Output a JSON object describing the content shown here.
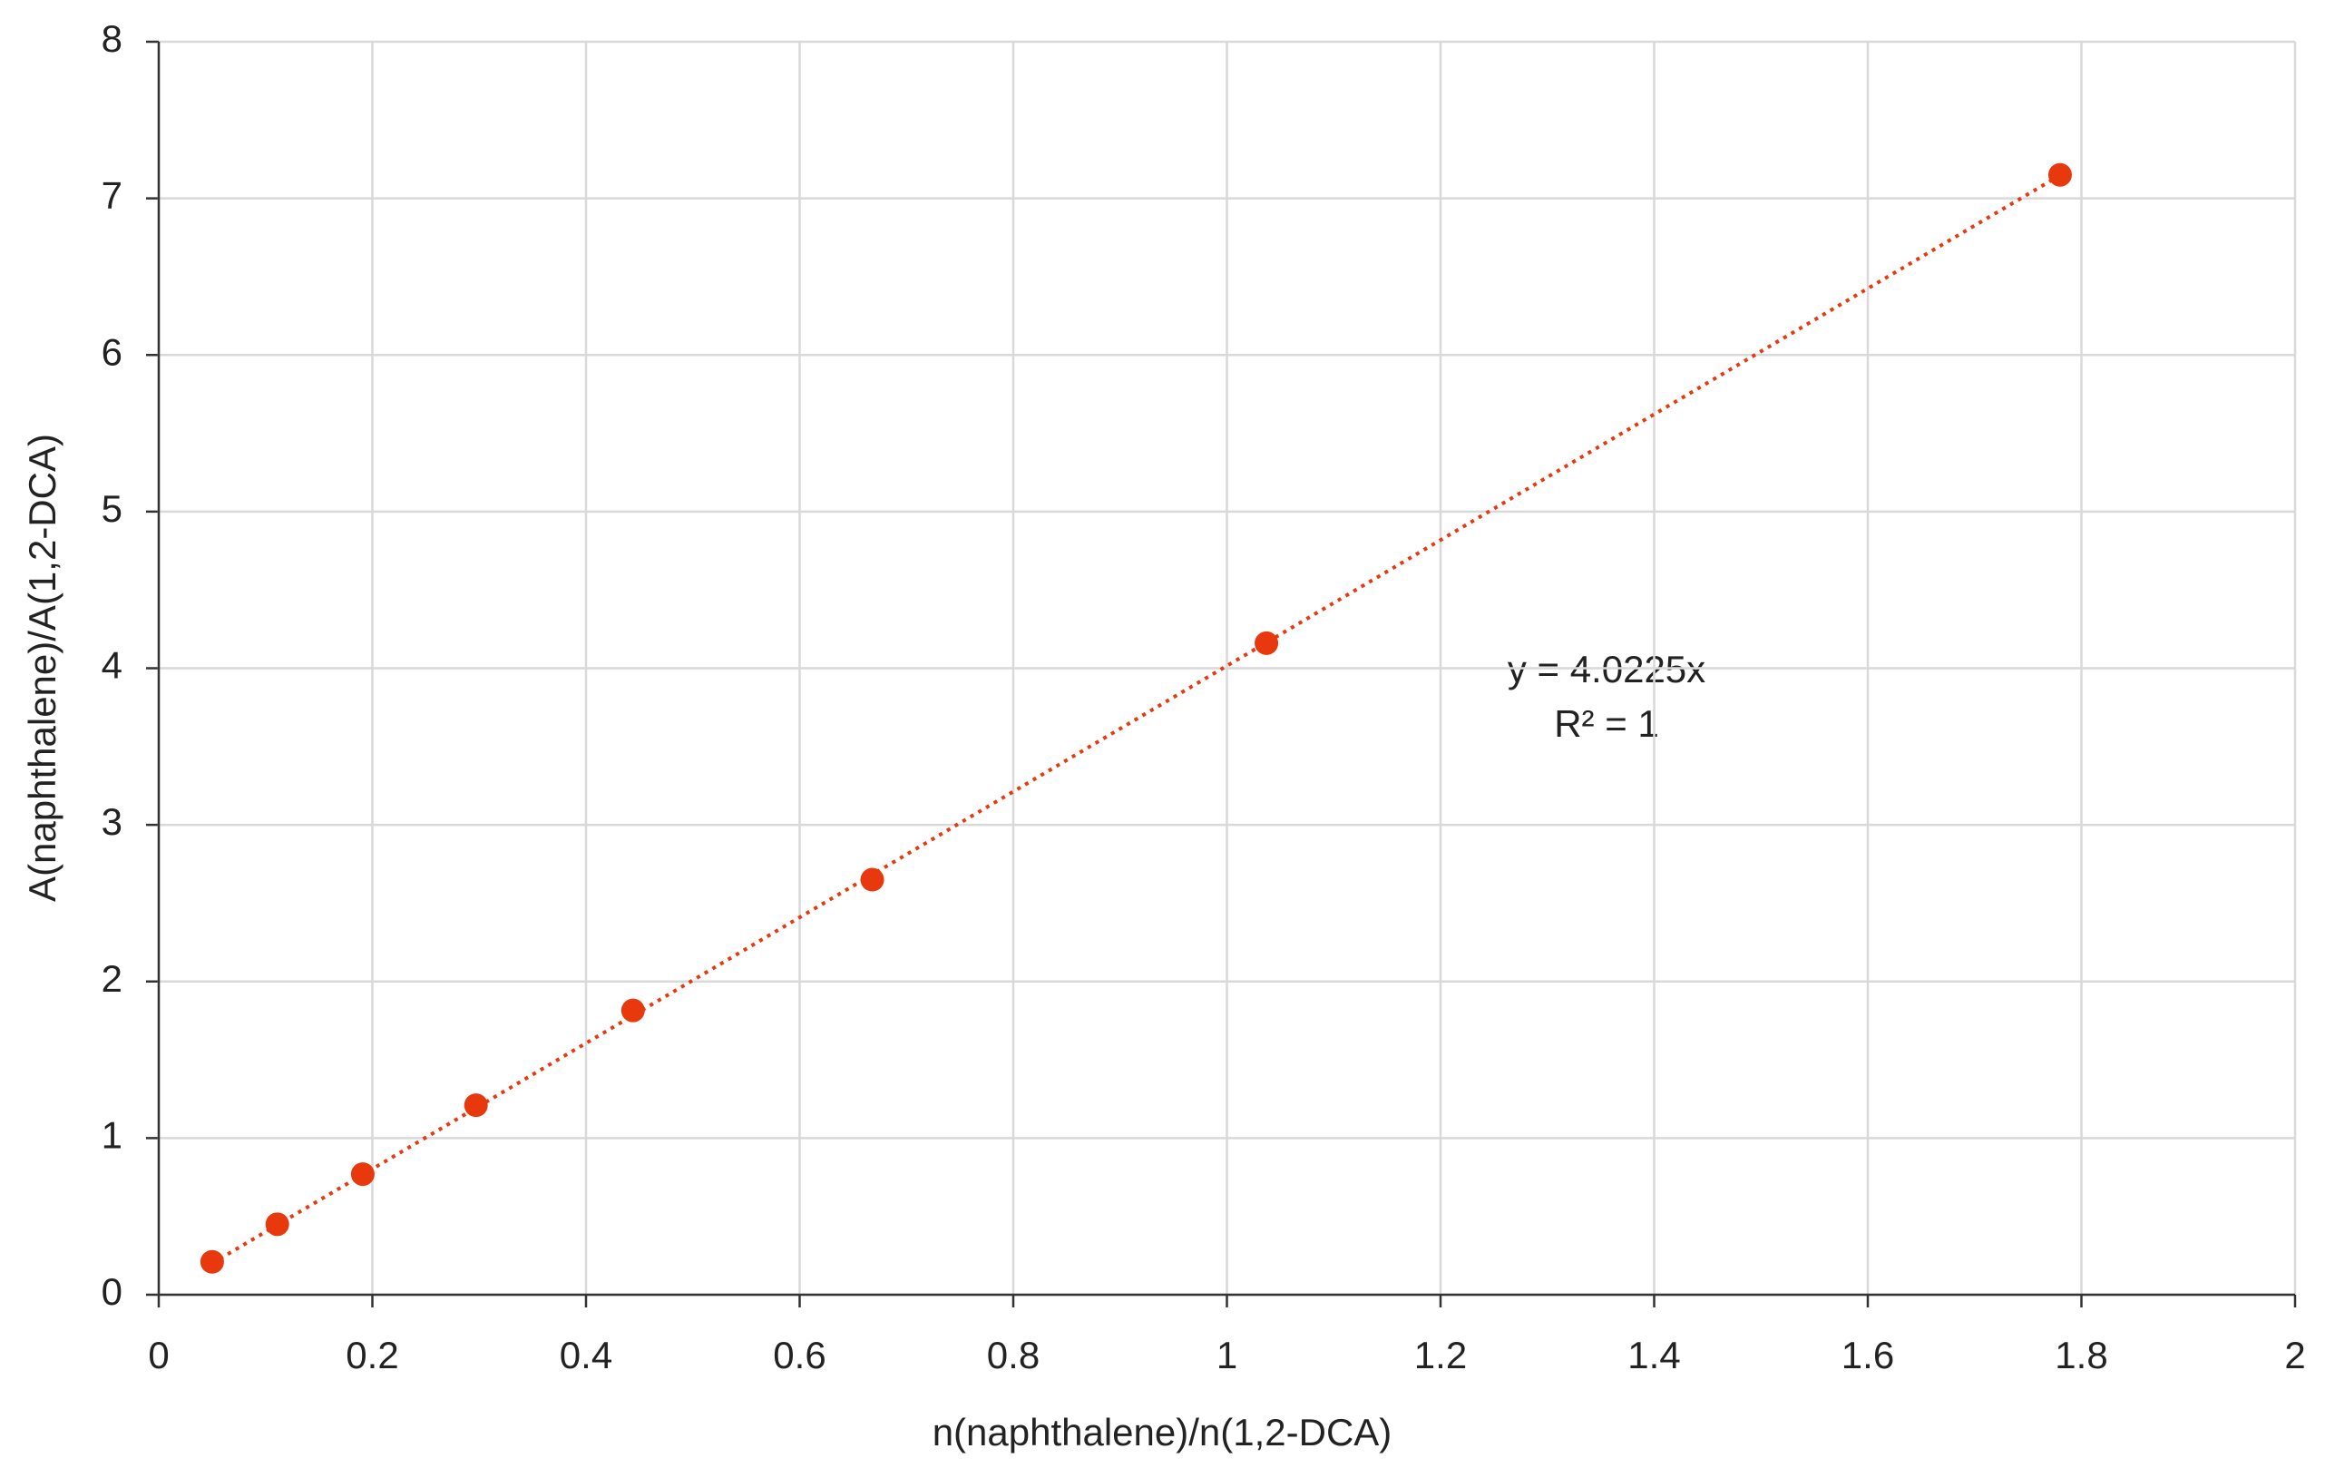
{
  "chart_data": {
    "type": "scatter",
    "x_label": "n(naphthalene)/n(1,2-DCA)",
    "y_label": "A(naphthalene)/A(1,2-DCA)",
    "annotations": [
      "y = 4.0225x",
      "R² = 1"
    ],
    "series": [
      {
        "color": "#e8380d",
        "x": [
          0.05,
          0.111,
          0.191,
          0.297,
          0.444,
          0.668,
          1.037,
          1.78
        ],
        "values": [
          0.21,
          0.45,
          0.77,
          1.21,
          1.815,
          2.65,
          4.16,
          7.15
        ]
      }
    ],
    "trendline": true,
    "xlim": [
      0,
      2
    ],
    "xticks": [
      0,
      0.2,
      0.4,
      0.6,
      0.8,
      1,
      1.2,
      1.4,
      1.6,
      1.8,
      2
    ],
    "ylim": [
      0,
      8
    ],
    "yticks": [
      0,
      1,
      2,
      3,
      4,
      5,
      6,
      7,
      8
    ],
    "grid": true
  }
}
